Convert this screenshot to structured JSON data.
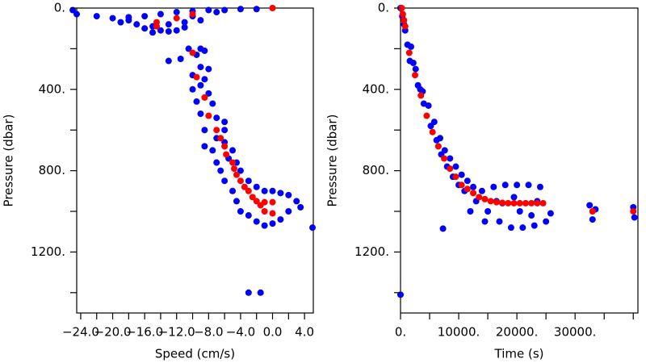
{
  "chart_data": [
    {
      "type": "scatter",
      "x_label": "Speed (cm/s)",
      "y_label": "Pressure (dbar)",
      "y_inverted": true,
      "xlim": [
        -24.5,
        5.1
      ],
      "ylim": [
        0,
        1500
      ],
      "xticks": [
        {
          "value": -24,
          "label": "−24.0"
        },
        {
          "value": -20,
          "label": "−20.0"
        },
        {
          "value": -16,
          "label": "−16.0"
        },
        {
          "value": -12,
          "label": "−12.0"
        },
        {
          "value": -8,
          "label": "−8.0"
        },
        {
          "value": -4,
          "label": "−4.0"
        },
        {
          "value": 0,
          "label": "0.0"
        },
        {
          "value": 4,
          "label": "4.0"
        }
      ],
      "xminor_ticks": [
        -22,
        -18,
        -14,
        -10,
        -6,
        -2,
        2
      ],
      "yticks": [
        {
          "value": 0,
          "label": "0."
        },
        {
          "value": 400,
          "label": "400."
        },
        {
          "value": 800,
          "label": "800."
        },
        {
          "value": 1200,
          "label": "1200."
        }
      ],
      "yminor_ticks": [
        200,
        600,
        1000,
        1400
      ],
      "series": [
        {
          "color": "#0000ff",
          "x": [
            -25,
            -24.5,
            -22,
            -20,
            -18,
            -16,
            -14,
            -12,
            -10,
            -8,
            -6,
            -4,
            -2,
            -19,
            -17,
            -15,
            -13,
            -11,
            -16,
            -14,
            -12,
            -15,
            -13,
            -11,
            -9,
            -18,
            -10,
            -7,
            -13,
            -11.5,
            -10.5,
            -9,
            -8.5,
            -9.5,
            -9,
            -8,
            -10,
            -8.5,
            -9,
            -10,
            -8,
            -9.5,
            -7.5,
            -9,
            -7,
            -8.5,
            -6,
            -8.5,
            -6,
            -7.5,
            -5,
            -7,
            -4.5,
            -6.5,
            -4,
            -6,
            -3,
            -5,
            -2,
            -4.5,
            -1,
            -4,
            0,
            -3,
            1,
            -2,
            2,
            -1,
            3,
            0,
            2,
            3.5,
            1,
            -3,
            -1.5,
            5,
            -6,
            -7,
            -5.5
          ],
          "values": [
            10,
            30,
            40,
            50,
            45,
            40,
            30,
            20,
            15,
            10,
            10,
            5,
            5,
            70,
            80,
            90,
            80,
            70,
            100,
            110,
            110,
            120,
            115,
            95,
            60,
            60,
            40,
            20,
            260,
            250,
            200,
            200,
            210,
            230,
            290,
            300,
            330,
            350,
            380,
            400,
            420,
            460,
            470,
            520,
            540,
            600,
            600,
            680,
            660,
            700,
            700,
            760,
            760,
            800,
            800,
            850,
            850,
            900,
            880,
            950,
            900,
            1000,
            900,
            1020,
            910,
            1050,
            920,
            1070,
            950,
            1060,
            1000,
            980,
            1040,
            1400,
            1400,
            1080,
            560,
            640,
            740
          ]
        },
        {
          "color": "#ff0000",
          "x": [
            0,
            -14.5,
            -14.5,
            -12,
            -10,
            -10,
            -9.5,
            -8.5,
            -8,
            -7,
            -6.5,
            -6,
            -5.8,
            -5,
            -4.8,
            -4.5,
            -4,
            -3.5,
            -3,
            -2.5,
            -2,
            -1.5,
            -1,
            0,
            -1,
            0
          ],
          "values": [
            0,
            70,
            90,
            50,
            30,
            220,
            340,
            440,
            530,
            600,
            640,
            680,
            720,
            760,
            790,
            820,
            850,
            880,
            900,
            930,
            950,
            970,
            955,
            955,
            1000,
            1010
          ]
        }
      ]
    },
    {
      "type": "scatter",
      "x_label": "Time (s)",
      "y_label": "Pressure (dbar)",
      "y_inverted": true,
      "xlim": [
        0,
        40800
      ],
      "ylim": [
        0,
        1500
      ],
      "xticks": [
        {
          "value": 0,
          "label": "0."
        },
        {
          "value": 10000,
          "label": "10000."
        },
        {
          "value": 20000,
          "label": "20000."
        },
        {
          "value": 30000,
          "label": "30000."
        }
      ],
      "xminor_ticks": [
        5000,
        15000,
        25000,
        35000,
        40000
      ],
      "yticks": [
        {
          "value": 0,
          "label": "0."
        },
        {
          "value": 400,
          "label": "400."
        },
        {
          "value": 800,
          "label": "800."
        },
        {
          "value": 1200,
          "label": "1200."
        }
      ],
      "yminor_ticks": [
        200,
        600,
        1000,
        1400
      ],
      "series": [
        {
          "color": "#0000ff",
          "x": [
            0,
            300,
            600,
            800,
            1200,
            1800,
            1600,
            2200,
            2600,
            3000,
            3400,
            4000,
            3800,
            4800,
            5200,
            5800,
            6200,
            6800,
            7000,
            7600,
            8000,
            8500,
            9000,
            9500,
            10000,
            10500,
            11000,
            11500,
            12500,
            13000,
            14000,
            15000,
            16000,
            17000,
            18000,
            19000,
            20000,
            21000,
            22000,
            23000,
            24000,
            25000,
            17500,
            20500,
            23500,
            25800,
            0,
            7300,
            32500,
            33000,
            33500,
            40000,
            40200,
            12000,
            14500,
            16500,
            19500,
            22500
          ],
          "values": [
            0,
            40,
            80,
            110,
            180,
            190,
            260,
            270,
            300,
            380,
            400,
            470,
            410,
            480,
            580,
            560,
            650,
            640,
            720,
            700,
            780,
            740,
            830,
            780,
            870,
            820,
            900,
            850,
            880,
            950,
            900,
            1000,
            880,
            1050,
            870,
            1080,
            870,
            1080,
            870,
            1070,
            880,
            1050,
            960,
            1000,
            950,
            1010,
            1410,
            1085,
            970,
            1040,
            990,
            980,
            1030,
            1000,
            1050,
            950,
            930,
            1020
          ]
        },
        {
          "color": "#ff0000",
          "x": [
            200,
            400,
            600,
            800,
            1500,
            2500,
            3500,
            4500,
            5500,
            6500,
            7500,
            8500,
            9500,
            10500,
            11500,
            12500,
            13500,
            14500,
            15500,
            16500,
            17500,
            18500,
            19500,
            20500,
            21500,
            22500,
            23500,
            24500,
            33000,
            40000
          ],
          "values": [
            0,
            30,
            60,
            90,
            220,
            330,
            430,
            530,
            610,
            680,
            740,
            790,
            830,
            870,
            890,
            910,
            930,
            940,
            950,
            955,
            958,
            960,
            960,
            960,
            960,
            960,
            960,
            960,
            1000,
            1000
          ]
        }
      ]
    }
  ]
}
